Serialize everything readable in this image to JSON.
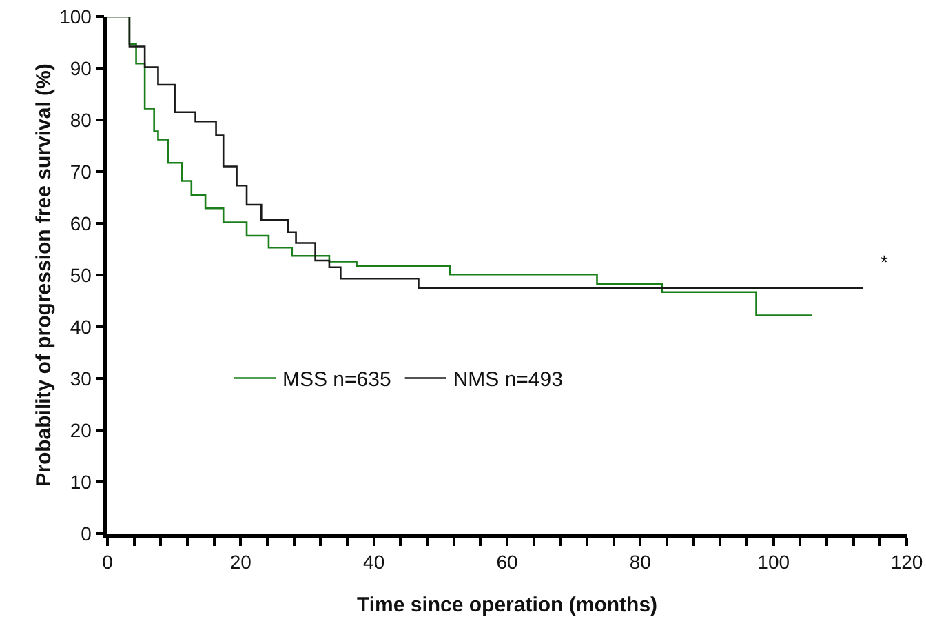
{
  "chart_data": {
    "type": "step",
    "xlabel": "Time since operation (months)",
    "ylabel": "Probability of progression free survival (%)",
    "series": [
      {
        "name": "MSS n=635",
        "color": "#1a7f1a",
        "x": [
          0,
          3.3,
          4.3,
          5.6,
          7.0,
          7.6,
          9.1,
          11.2,
          12.6,
          14.7,
          17.4,
          20.9,
          24.2,
          27.7,
          33.3,
          37.4,
          51.4,
          73.5,
          83.3,
          97.4,
          105.8
        ],
        "values": [
          100,
          94.7,
          90.9,
          82.2,
          77.8,
          76.2,
          71.7,
          68.2,
          65.5,
          62.9,
          60.2,
          57.6,
          55.3,
          53.7,
          52.6,
          51.7,
          50.1,
          48.3,
          46.7,
          42.2,
          42.2
        ]
      },
      {
        "name": "NMS n=493",
        "color": "#1a1a1a",
        "x": [
          0,
          3.3,
          5.6,
          7.6,
          10.1,
          13.2,
          16.3,
          17.4,
          19.4,
          20.9,
          23.1,
          27.1,
          28.3,
          31.2,
          33.3,
          35,
          38,
          46.7,
          113.4
        ],
        "values": [
          100,
          94.2,
          90.2,
          86.8,
          81.5,
          79.7,
          77.0,
          71.0,
          67.3,
          63.6,
          60.7,
          58.3,
          56.2,
          52.8,
          51.5,
          49.3,
          49.3,
          47.5,
          47.5
        ]
      }
    ],
    "xlim": [
      0,
      120
    ],
    "xticks": [
      0,
      {
        "value": 4,
        "label": null
      },
      {
        "value": 8,
        "label": null
      },
      {
        "value": 12,
        "label": null
      },
      {
        "value": 16,
        "label": null
      },
      20,
      {
        "value": 24,
        "label": null
      },
      {
        "value": 28,
        "label": null
      },
      {
        "value": 32,
        "label": null
      },
      {
        "value": 36,
        "label": null
      },
      40,
      {
        "value": 44,
        "label": null
      },
      {
        "value": 48,
        "label": null
      },
      {
        "value": 52,
        "label": null
      },
      {
        "value": 56,
        "label": null
      },
      60,
      {
        "value": 64,
        "label": null
      },
      {
        "value": 68,
        "label": null
      },
      {
        "value": 72,
        "label": null
      },
      {
        "value": 76,
        "label": null
      },
      80,
      {
        "value": 84,
        "label": null
      },
      {
        "value": 88,
        "label": null
      },
      {
        "value": 92,
        "label": null
      },
      {
        "value": 96,
        "label": null
      },
      100,
      {
        "value": 104,
        "label": null
      },
      {
        "value": 108,
        "label": null
      },
      {
        "value": 112,
        "label": null
      },
      {
        "value": 116,
        "label": null
      },
      120
    ],
    "ylim": [
      0,
      100
    ],
    "yticks": [
      0,
      10,
      20,
      30,
      40,
      50,
      60,
      70,
      80,
      90,
      100
    ],
    "annotations": [
      "*"
    ],
    "legend": "bottom left",
    "grid": false,
    "marker": "none",
    "line_style": "solid"
  }
}
